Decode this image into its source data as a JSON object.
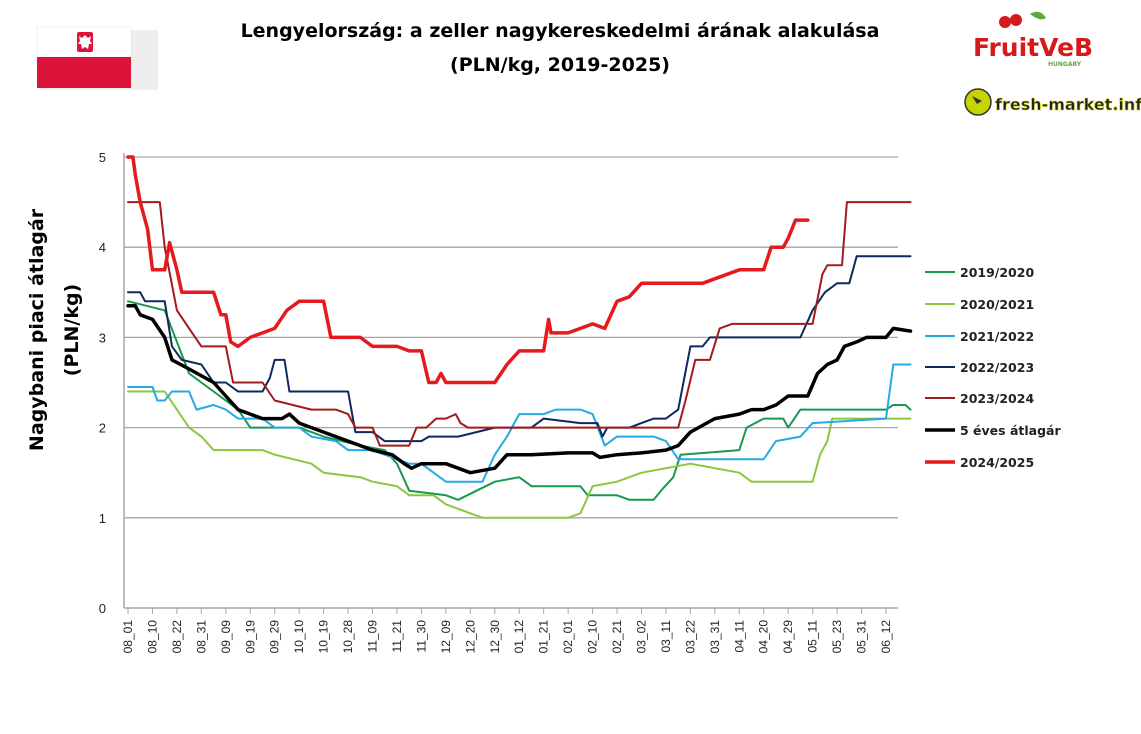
{
  "chart_data": {
    "type": "line",
    "title": "Lengyelország: a zeller nagykereskedelmi árának alakulása",
    "subtitle": "(PLN/kg, 2019-2025)",
    "ylabel_line1": "Nagybani piaci átlagár",
    "ylabel_line2": "(PLN/kg)",
    "xlabel": "",
    "ylim": [
      0,
      5
    ],
    "yticks": [
      "0",
      "1",
      "2",
      "3",
      "4",
      "5"
    ],
    "xticks": [
      "08_01",
      "08_10",
      "08_22",
      "08_31",
      "09_09",
      "09_19",
      "09_29",
      "10_10",
      "10_19",
      "10_28",
      "11_09",
      "11_21",
      "11_30",
      "12_09",
      "12_20",
      "12_30",
      "01_12",
      "01_21",
      "02_01",
      "02_10",
      "02_21",
      "03_02",
      "03_11",
      "03_22",
      "03_31",
      "04_11",
      "04_20",
      "04_29",
      "05_11",
      "05_23",
      "05_31",
      "06_12"
    ],
    "grid": true,
    "legend_position": "right",
    "series": [
      {
        "name": "2019/2020",
        "color": "#1a9850",
        "width": 2,
        "points": [
          [
            0,
            3.4
          ],
          [
            1.5,
            3.3
          ],
          [
            2.5,
            2.6
          ],
          [
            3.5,
            2.4
          ],
          [
            4.5,
            2.2
          ],
          [
            5,
            2.0
          ],
          [
            7,
            2.0
          ],
          [
            8,
            1.9
          ],
          [
            9.5,
            1.8
          ],
          [
            10.5,
            1.75
          ],
          [
            11,
            1.6
          ],
          [
            11.5,
            1.3
          ],
          [
            13,
            1.25
          ],
          [
            13.5,
            1.2
          ],
          [
            15,
            1.4
          ],
          [
            16,
            1.45
          ],
          [
            16.5,
            1.35
          ],
          [
            18.5,
            1.35
          ],
          [
            18.8,
            1.25
          ],
          [
            20,
            1.25
          ],
          [
            20.5,
            1.2
          ],
          [
            21.5,
            1.2
          ],
          [
            21.8,
            1.3
          ],
          [
            22.3,
            1.45
          ],
          [
            22.6,
            1.7
          ],
          [
            25,
            1.75
          ],
          [
            25.3,
            2.0
          ],
          [
            26,
            2.1
          ],
          [
            26.8,
            2.1
          ],
          [
            27,
            2.0
          ],
          [
            27.5,
            2.2
          ],
          [
            31,
            2.2
          ],
          [
            31.3,
            2.25
          ],
          [
            31.8,
            2.25
          ],
          [
            32,
            2.2
          ]
        ]
      },
      {
        "name": "2020/2021",
        "color": "#8cc63f",
        "width": 2,
        "points": [
          [
            0,
            2.4
          ],
          [
            1.5,
            2.4
          ],
          [
            2,
            2.2
          ],
          [
            2.5,
            2.0
          ],
          [
            3,
            1.9
          ],
          [
            3.5,
            1.75
          ],
          [
            5.5,
            1.75
          ],
          [
            6,
            1.7
          ],
          [
            7.5,
            1.6
          ],
          [
            8,
            1.5
          ],
          [
            9.5,
            1.45
          ],
          [
            10,
            1.4
          ],
          [
            11,
            1.35
          ],
          [
            11.5,
            1.25
          ],
          [
            12.5,
            1.25
          ],
          [
            13,
            1.15
          ],
          [
            14,
            1.05
          ],
          [
            14.5,
            1.0
          ],
          [
            18,
            1.0
          ],
          [
            18.5,
            1.05
          ],
          [
            19,
            1.35
          ],
          [
            20,
            1.4
          ],
          [
            21,
            1.5
          ],
          [
            23,
            1.6
          ],
          [
            25,
            1.5
          ],
          [
            25.5,
            1.4
          ],
          [
            28,
            1.4
          ],
          [
            28.3,
            1.7
          ],
          [
            28.6,
            1.85
          ],
          [
            28.8,
            2.1
          ],
          [
            31.2,
            2.1
          ],
          [
            32,
            2.1
          ]
        ]
      },
      {
        "name": "2021/2022",
        "color": "#27aae1",
        "width": 2,
        "points": [
          [
            0,
            2.45
          ],
          [
            1,
            2.45
          ],
          [
            1.2,
            2.3
          ],
          [
            1.5,
            2.3
          ],
          [
            1.8,
            2.4
          ],
          [
            2.5,
            2.4
          ],
          [
            2.8,
            2.2
          ],
          [
            3.5,
            2.25
          ],
          [
            4,
            2.2
          ],
          [
            4.5,
            2.1
          ],
          [
            5.5,
            2.1
          ],
          [
            6,
            2.0
          ],
          [
            7,
            2.0
          ],
          [
            7.5,
            1.9
          ],
          [
            8.5,
            1.85
          ],
          [
            9,
            1.75
          ],
          [
            10,
            1.75
          ],
          [
            10.5,
            1.7
          ],
          [
            11.5,
            1.6
          ],
          [
            12,
            1.6
          ],
          [
            12.5,
            1.5
          ],
          [
            13,
            1.4
          ],
          [
            14.5,
            1.4
          ],
          [
            15,
            1.7
          ],
          [
            15.5,
            1.9
          ],
          [
            16,
            2.15
          ],
          [
            17,
            2.15
          ],
          [
            17.5,
            2.2
          ],
          [
            18.5,
            2.2
          ],
          [
            19,
            2.15
          ],
          [
            19.5,
            1.8
          ],
          [
            20,
            1.9
          ],
          [
            21.5,
            1.9
          ],
          [
            22,
            1.85
          ],
          [
            22.5,
            1.65
          ],
          [
            26,
            1.65
          ],
          [
            26.5,
            1.85
          ],
          [
            27.5,
            1.9
          ],
          [
            28,
            2.05
          ],
          [
            31,
            2.1
          ],
          [
            31.3,
            2.7
          ],
          [
            32,
            2.7
          ]
        ]
      },
      {
        "name": "2022/2023",
        "color": "#0d2a5e",
        "width": 2,
        "points": [
          [
            0,
            3.5
          ],
          [
            0.5,
            3.5
          ],
          [
            0.7,
            3.4
          ],
          [
            1.5,
            3.4
          ],
          [
            1.8,
            2.9
          ],
          [
            2.2,
            2.75
          ],
          [
            3,
            2.7
          ],
          [
            3.5,
            2.5
          ],
          [
            4,
            2.5
          ],
          [
            4.5,
            2.4
          ],
          [
            5.5,
            2.4
          ],
          [
            5.8,
            2.55
          ],
          [
            6,
            2.75
          ],
          [
            6.4,
            2.75
          ],
          [
            6.6,
            2.4
          ],
          [
            8,
            2.4
          ],
          [
            9,
            2.4
          ],
          [
            9.3,
            1.95
          ],
          [
            10,
            1.95
          ],
          [
            10.5,
            1.85
          ],
          [
            12,
            1.85
          ],
          [
            12.3,
            1.9
          ],
          [
            13.5,
            1.9
          ],
          [
            15,
            2.0
          ],
          [
            16.5,
            2.0
          ],
          [
            17,
            2.1
          ],
          [
            18.5,
            2.05
          ],
          [
            19.2,
            2.05
          ],
          [
            19.4,
            1.9
          ],
          [
            19.6,
            2.0
          ],
          [
            20.5,
            2.0
          ],
          [
            21,
            2.05
          ],
          [
            21.5,
            2.1
          ],
          [
            22,
            2.1
          ],
          [
            22.5,
            2.2
          ],
          [
            23,
            2.9
          ],
          [
            23.5,
            2.9
          ],
          [
            23.8,
            3.0
          ],
          [
            27.5,
            3.0
          ],
          [
            28,
            3.3
          ],
          [
            28.5,
            3.5
          ],
          [
            29,
            3.6
          ],
          [
            29.5,
            3.6
          ],
          [
            29.8,
            3.9
          ],
          [
            32,
            3.9
          ]
        ]
      },
      {
        "name": "2023/2024",
        "color": "#a31a1a",
        "width": 2,
        "points": [
          [
            0,
            4.5
          ],
          [
            1,
            4.5
          ],
          [
            1.3,
            4.5
          ],
          [
            1.5,
            4.0
          ],
          [
            2,
            3.3
          ],
          [
            2.5,
            3.1
          ],
          [
            3,
            2.9
          ],
          [
            4,
            2.9
          ],
          [
            4.3,
            2.5
          ],
          [
            5.5,
            2.5
          ],
          [
            6,
            2.3
          ],
          [
            7.5,
            2.2
          ],
          [
            8.5,
            2.2
          ],
          [
            9,
            2.15
          ],
          [
            9.3,
            2.0
          ],
          [
            10,
            2.0
          ],
          [
            10.3,
            1.8
          ],
          [
            11.5,
            1.8
          ],
          [
            11.8,
            2.0
          ],
          [
            12.2,
            2.0
          ],
          [
            12.6,
            2.1
          ],
          [
            13,
            2.1
          ],
          [
            13.4,
            2.15
          ],
          [
            13.6,
            2.05
          ],
          [
            13.9,
            2.0
          ],
          [
            22.5,
            2.0
          ],
          [
            22.8,
            2.3
          ],
          [
            23.2,
            2.75
          ],
          [
            23.8,
            2.75
          ],
          [
            24.2,
            3.1
          ],
          [
            24.7,
            3.15
          ],
          [
            28,
            3.15
          ],
          [
            28.4,
            3.7
          ],
          [
            28.6,
            3.8
          ],
          [
            29.2,
            3.8
          ],
          [
            29.4,
            4.5
          ],
          [
            32,
            4.5
          ]
        ]
      },
      {
        "name": "5 éves átlagár",
        "color": "#000000",
        "width": 3.5,
        "points": [
          [
            0,
            3.35
          ],
          [
            0.3,
            3.35
          ],
          [
            0.5,
            3.25
          ],
          [
            1,
            3.2
          ],
          [
            1.5,
            3.0
          ],
          [
            1.8,
            2.75
          ],
          [
            2.5,
            2.65
          ],
          [
            3.5,
            2.5
          ],
          [
            4,
            2.35
          ],
          [
            4.5,
            2.2
          ],
          [
            5.5,
            2.1
          ],
          [
            6.3,
            2.1
          ],
          [
            6.6,
            2.15
          ],
          [
            7,
            2.05
          ],
          [
            8,
            1.95
          ],
          [
            9,
            1.85
          ],
          [
            10,
            1.75
          ],
          [
            10.8,
            1.7
          ],
          [
            11.3,
            1.6
          ],
          [
            11.6,
            1.55
          ],
          [
            12,
            1.6
          ],
          [
            13,
            1.6
          ],
          [
            13.5,
            1.55
          ],
          [
            14,
            1.5
          ],
          [
            15,
            1.55
          ],
          [
            15.5,
            1.7
          ],
          [
            16.5,
            1.7
          ],
          [
            18,
            1.72
          ],
          [
            19,
            1.72
          ],
          [
            19.3,
            1.67
          ],
          [
            20,
            1.7
          ],
          [
            21,
            1.72
          ],
          [
            22,
            1.75
          ],
          [
            22.5,
            1.8
          ],
          [
            23,
            1.95
          ],
          [
            24,
            2.1
          ],
          [
            25,
            2.15
          ],
          [
            25.5,
            2.2
          ],
          [
            26,
            2.2
          ],
          [
            26.5,
            2.25
          ],
          [
            27,
            2.35
          ],
          [
            27.8,
            2.35
          ],
          [
            28.2,
            2.6
          ],
          [
            28.6,
            2.7
          ],
          [
            29,
            2.75
          ],
          [
            29.3,
            2.9
          ],
          [
            29.8,
            2.95
          ],
          [
            30.2,
            3.0
          ],
          [
            31,
            3.0
          ],
          [
            31.3,
            3.1
          ],
          [
            32,
            3.07
          ]
        ]
      },
      {
        "name": "2024/2025",
        "color": "#e41a1c",
        "width": 3.5,
        "points": [
          [
            0,
            5.0
          ],
          [
            0.2,
            5.0
          ],
          [
            0.3,
            4.8
          ],
          [
            0.5,
            4.5
          ],
          [
            0.8,
            4.2
          ],
          [
            1,
            3.75
          ],
          [
            1.5,
            3.75
          ],
          [
            1.7,
            4.05
          ],
          [
            2,
            3.75
          ],
          [
            2.2,
            3.5
          ],
          [
            3.5,
            3.5
          ],
          [
            3.8,
            3.25
          ],
          [
            4,
            3.25
          ],
          [
            4.2,
            2.95
          ],
          [
            4.5,
            2.9
          ],
          [
            5,
            3.0
          ],
          [
            5.5,
            3.05
          ],
          [
            6,
            3.1
          ],
          [
            6.5,
            3.3
          ],
          [
            7,
            3.4
          ],
          [
            8,
            3.4
          ],
          [
            8.3,
            3.0
          ],
          [
            9.5,
            3.0
          ],
          [
            10,
            2.9
          ],
          [
            11,
            2.9
          ],
          [
            11.5,
            2.85
          ],
          [
            12,
            2.85
          ],
          [
            12.3,
            2.5
          ],
          [
            12.6,
            2.5
          ],
          [
            12.8,
            2.6
          ],
          [
            13,
            2.5
          ],
          [
            15,
            2.5
          ],
          [
            15.5,
            2.7
          ],
          [
            16,
            2.85
          ],
          [
            17,
            2.85
          ],
          [
            17.2,
            3.2
          ],
          [
            17.3,
            3.05
          ],
          [
            18,
            3.05
          ],
          [
            18.5,
            3.1
          ],
          [
            19,
            3.15
          ],
          [
            19.5,
            3.1
          ],
          [
            20,
            3.4
          ],
          [
            20.5,
            3.45
          ],
          [
            21,
            3.6
          ],
          [
            22,
            3.6
          ],
          [
            23.5,
            3.6
          ],
          [
            24,
            3.65
          ],
          [
            24.5,
            3.7
          ],
          [
            25,
            3.75
          ],
          [
            26,
            3.75
          ],
          [
            26.3,
            4.0
          ],
          [
            26.8,
            4.0
          ],
          [
            27,
            4.1
          ],
          [
            27.3,
            4.3
          ],
          [
            27.8,
            4.3
          ]
        ]
      }
    ]
  },
  "flag": {
    "colors": [
      "#ffffff",
      "#dc143c"
    ],
    "emblem_icon": "white-eagle-icon"
  },
  "logos": {
    "fruitveb_text": "FruitVeB",
    "fruitveb_sub": "HUNGARY",
    "freshmarket_text": "fresh-market.info"
  }
}
